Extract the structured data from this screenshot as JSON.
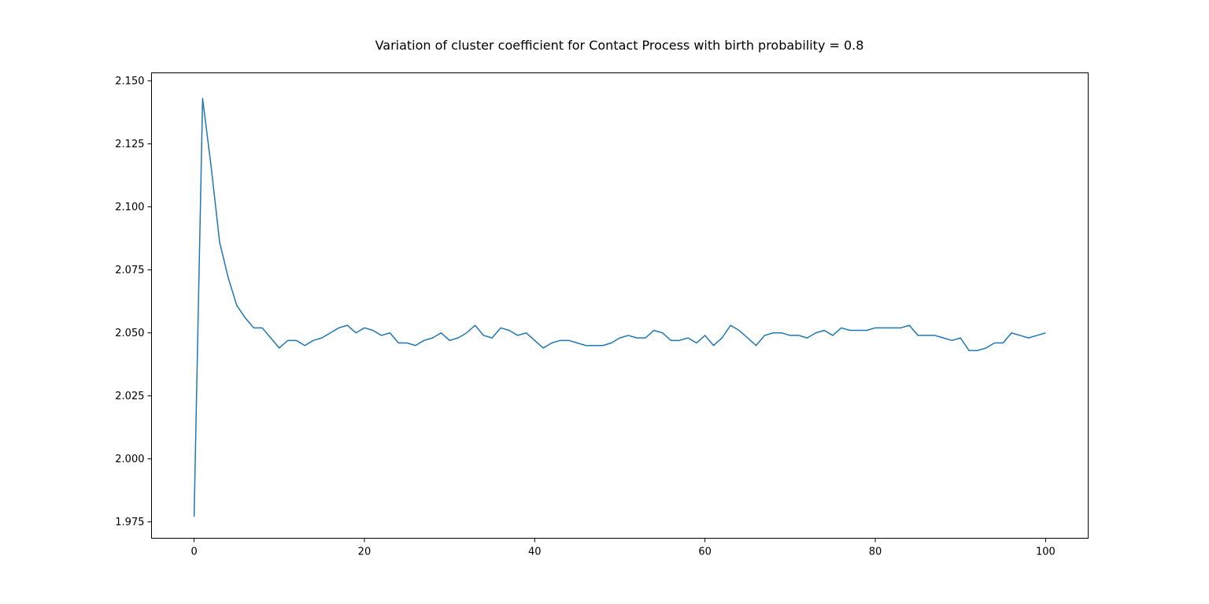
{
  "chart_data": {
    "type": "line",
    "title": "Variation of cluster coefficient for Contact Process with birth probability = 0.8",
    "xlabel": "",
    "ylabel": "",
    "xlim": [
      -5,
      105
    ],
    "ylim": [
      1.9685,
      2.1532
    ],
    "x_ticks": [
      0,
      20,
      40,
      60,
      80,
      100
    ],
    "x_tick_labels": [
      "0",
      "20",
      "40",
      "60",
      "80",
      "100"
    ],
    "y_ticks": [
      1.975,
      2.0,
      2.025,
      2.05,
      2.075,
      2.1,
      2.125,
      2.15
    ],
    "y_tick_labels": [
      "1.975",
      "2.000",
      "2.025",
      "2.050",
      "2.075",
      "2.100",
      "2.125",
      "2.150"
    ],
    "grid": false,
    "legend": "none",
    "line_color": "#1f77b4",
    "series": [
      {
        "x": [
          0,
          1,
          2,
          3,
          4,
          5,
          6,
          7,
          8,
          9,
          10,
          11,
          12,
          13,
          14,
          15,
          16,
          17,
          18,
          19,
          20,
          21,
          22,
          23,
          24,
          25,
          26,
          27,
          28,
          29,
          30,
          31,
          32,
          33,
          34,
          35,
          36,
          37,
          38,
          39,
          40,
          41,
          42,
          43,
          44,
          45,
          46,
          47,
          48,
          49,
          50,
          51,
          52,
          53,
          54,
          55,
          56,
          57,
          58,
          59,
          60,
          61,
          62,
          63,
          64,
          65,
          66,
          67,
          68,
          69,
          70,
          71,
          72,
          73,
          74,
          75,
          76,
          77,
          78,
          79,
          80,
          81,
          82,
          83,
          84,
          85,
          86,
          87,
          88,
          89,
          90,
          91,
          92,
          93,
          94,
          95,
          96,
          97,
          98,
          99,
          100
        ],
        "values": [
          1.977,
          2.143,
          2.116,
          2.086,
          2.072,
          2.061,
          2.056,
          2.052,
          2.052,
          2.048,
          2.044,
          2.047,
          2.047,
          2.045,
          2.047,
          2.048,
          2.05,
          2.052,
          2.053,
          2.05,
          2.052,
          2.051,
          2.049,
          2.05,
          2.046,
          2.046,
          2.045,
          2.047,
          2.048,
          2.05,
          2.047,
          2.048,
          2.05,
          2.053,
          2.049,
          2.048,
          2.052,
          2.051,
          2.049,
          2.05,
          2.047,
          2.044,
          2.046,
          2.047,
          2.047,
          2.046,
          2.045,
          2.045,
          2.045,
          2.046,
          2.048,
          2.049,
          2.048,
          2.048,
          2.051,
          2.05,
          2.047,
          2.047,
          2.048,
          2.046,
          2.049,
          2.045,
          2.048,
          2.053,
          2.051,
          2.048,
          2.045,
          2.049,
          2.05,
          2.05,
          2.049,
          2.049,
          2.048,
          2.05,
          2.051,
          2.049,
          2.052,
          2.051,
          2.051,
          2.051,
          2.052,
          2.052,
          2.052,
          2.052,
          2.053,
          2.049,
          2.049,
          2.049,
          2.048,
          2.047,
          2.048,
          2.043,
          2.043,
          2.044,
          2.046,
          2.046,
          2.05,
          2.049,
          2.048,
          2.049,
          2.05
        ]
      }
    ]
  }
}
